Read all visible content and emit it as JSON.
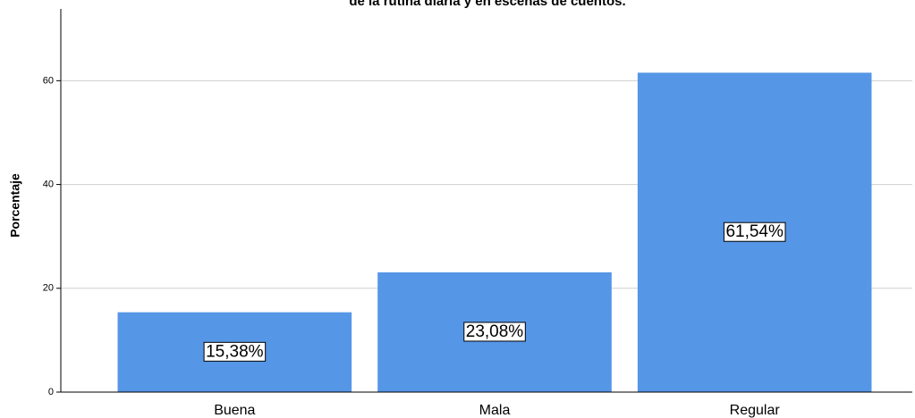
{
  "chart_data": {
    "type": "bar",
    "title": "de la rutina diaria y en escenas de cuentos.",
    "y_label": "Porcentaje",
    "categories": [
      "Buena",
      "Mala",
      "Regular"
    ],
    "values": [
      15.38,
      23.08,
      61.54
    ],
    "value_labels": [
      "15,38%",
      "23,08%",
      "61,54%"
    ],
    "color": "#5596e6",
    "ylim": [
      0,
      74
    ],
    "yticks": [
      0,
      20,
      40,
      60
    ],
    "grid": true
  }
}
